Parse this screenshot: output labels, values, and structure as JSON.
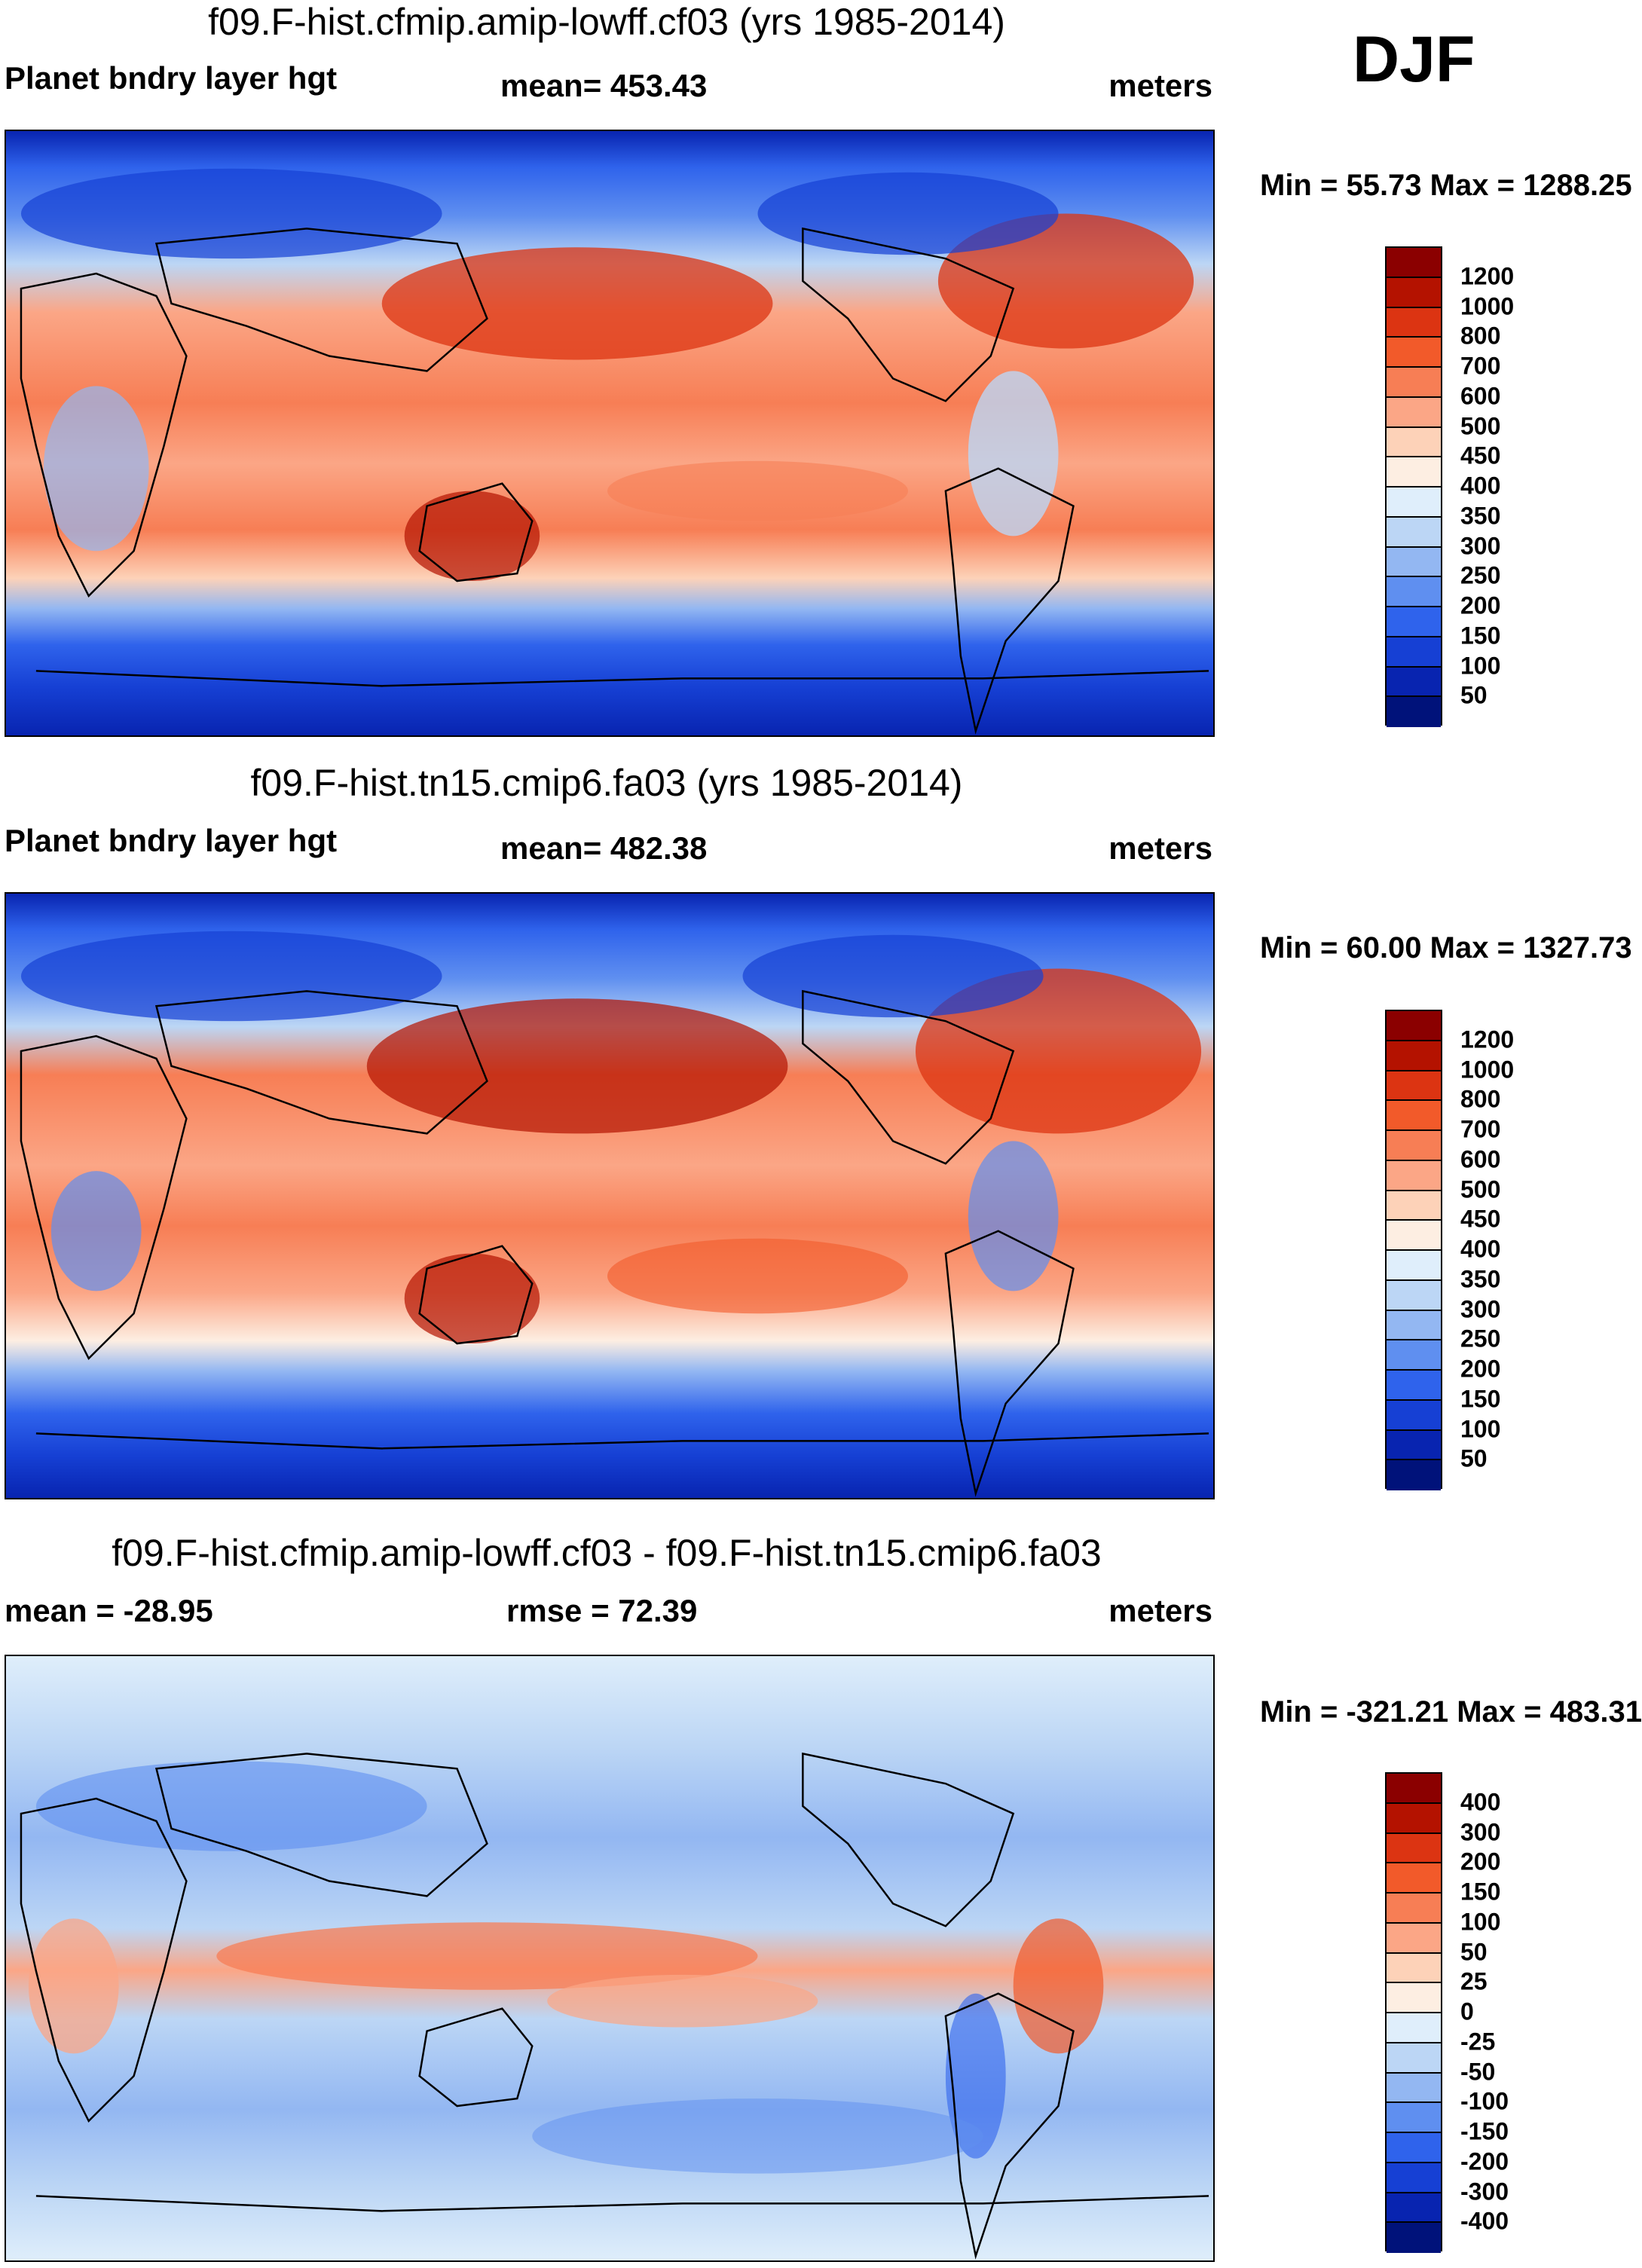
{
  "season": "DJF",
  "chart_data": [
    {
      "type": "heatmap",
      "title": "f09.F-hist.cfmip.amip-lowff.cf03 (yrs 1985-2014)",
      "variable": "Planet bndry layer hgt",
      "stat_text": "mean= 453.43",
      "units": "meters",
      "minmax_text": "Min =  55.73 Max = 1288.25",
      "mean": 453.43,
      "min": 55.73,
      "max": 1288.25,
      "levels": [
        "1200",
        "1000",
        "800",
        "700",
        "600",
        "500",
        "450",
        "400",
        "350",
        "300",
        "250",
        "200",
        "150",
        "100",
        "50"
      ],
      "colors": [
        "#8b0000",
        "#b41200",
        "#dc3412",
        "#f25a2a",
        "#f77e55",
        "#fba686",
        "#fdd2b8",
        "#fdeee2",
        "#dfeefb",
        "#bcd6f5",
        "#93b7f2",
        "#5f8ff0",
        "#2f63ec",
        "#1640d4",
        "#0824b0",
        "#00127a"
      ]
    },
    {
      "type": "heatmap",
      "title": "f09.F-hist.tn15.cmip6.fa03 (yrs 1985-2014)",
      "variable": "Planet bndry layer hgt",
      "stat_text": "mean= 482.38",
      "units": "meters",
      "minmax_text": "Min =  60.00 Max = 1327.73",
      "mean": 482.38,
      "min": 60.0,
      "max": 1327.73,
      "levels": [
        "1200",
        "1000",
        "800",
        "700",
        "600",
        "500",
        "450",
        "400",
        "350",
        "300",
        "250",
        "200",
        "150",
        "100",
        "50"
      ],
      "colors": [
        "#8b0000",
        "#b41200",
        "#dc3412",
        "#f25a2a",
        "#f77e55",
        "#fba686",
        "#fdd2b8",
        "#fdeee2",
        "#dfeefb",
        "#bcd6f5",
        "#93b7f2",
        "#5f8ff0",
        "#2f63ec",
        "#1640d4",
        "#0824b0",
        "#00127a"
      ]
    },
    {
      "type": "heatmap",
      "title": "f09.F-hist.cfmip.amip-lowff.cf03 - f09.F-hist.tn15.cmip6.fa03",
      "stat_text": "mean = -28.95",
      "stat2_text": "rmse =  72.39",
      "units": "meters",
      "minmax_text": "Min = -321.21 Max = 483.31",
      "mean": -28.95,
      "rmse": 72.39,
      "min": -321.21,
      "max": 483.31,
      "levels": [
        "400",
        "300",
        "200",
        "150",
        "100",
        "50",
        "25",
        "0",
        "-25",
        "-50",
        "-100",
        "-150",
        "-200",
        "-300",
        "-400"
      ],
      "colors": [
        "#8b0000",
        "#b41200",
        "#dc3412",
        "#f25a2a",
        "#f77e55",
        "#fba686",
        "#fdd2b8",
        "#fdeee2",
        "#dfeefb",
        "#bcd6f5",
        "#93b7f2",
        "#5f8ff0",
        "#2f63ec",
        "#1640d4",
        "#0824b0",
        "#00127a"
      ]
    }
  ]
}
